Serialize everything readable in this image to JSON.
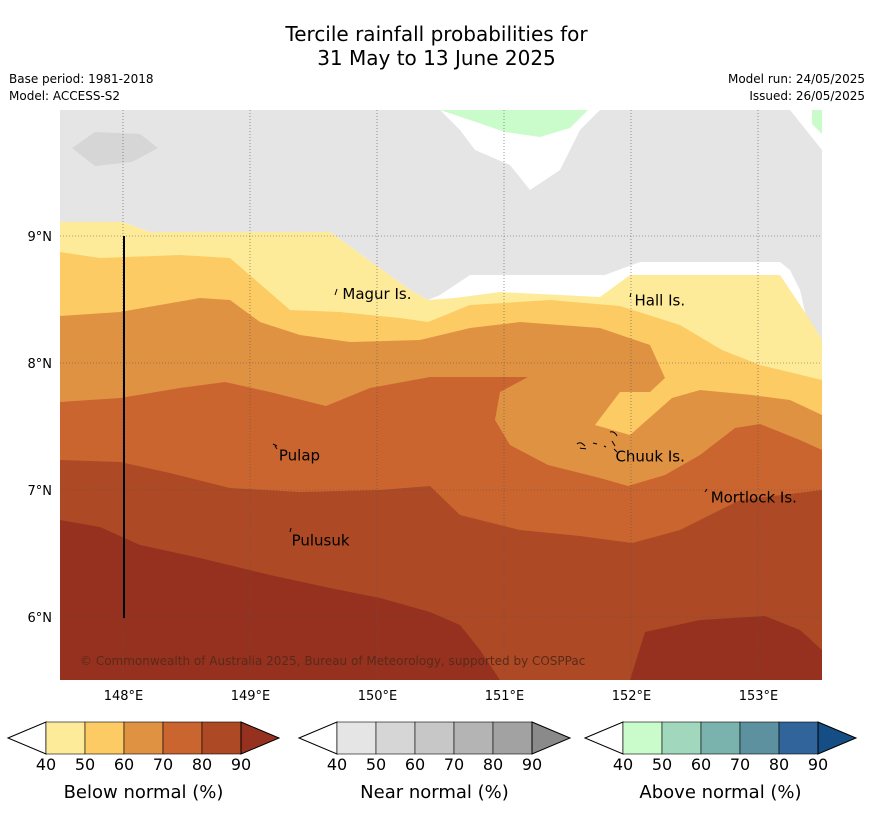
{
  "title_line1": "Tercile rainfall probabilities for",
  "title_line2": "31 May to 13 June 2025",
  "base_period": "Base period: 1981-2018",
  "model": "Model: ACCESS-S2",
  "model_run": "Model run: 24/05/2025",
  "issued": "Issued: 26/05/2025",
  "copyright": "© Commonwealth of Australia 2025, Bureau of Meteorology, supported by COSPPac",
  "lat_labels": [
    "9°N",
    "8°N",
    "7°N",
    "6°N"
  ],
  "lon_labels": [
    "148°E",
    "149°E",
    "150°E",
    "151°E",
    "152°E",
    "153°E"
  ],
  "places": [
    {
      "name": "Magur Is.",
      "lat": 8.55,
      "lon": 149.7
    },
    {
      "name": "Hall Is.",
      "lat": 8.5,
      "lon": 152.0
    },
    {
      "name": "Pulap",
      "lat": 7.28,
      "lon": 149.2
    },
    {
      "name": "Chuuk Is.",
      "lat": 7.27,
      "lon": 151.85
    },
    {
      "name": "Mortlock Is.",
      "lat": 6.95,
      "lon": 152.6
    },
    {
      "name": "Pulusuk",
      "lat": 6.61,
      "lon": 149.3
    }
  ],
  "colorbars": [
    {
      "label": "Below normal (%)",
      "ticks": [
        "40",
        "50",
        "60",
        "70",
        "80",
        "90"
      ],
      "colors": [
        "#ffffff",
        "#feeb9a",
        "#fdcb63",
        "#e09243",
        "#cb6530",
        "#ad4a25",
        "#963120"
      ]
    },
    {
      "label": "Near normal (%)",
      "ticks": [
        "40",
        "50",
        "60",
        "70",
        "80",
        "90"
      ],
      "colors": [
        "#ffffff",
        "#e5e5e5",
        "#d6d6d6",
        "#c7c7c7",
        "#b4b4b4",
        "#a2a2a2",
        "#8a8a8a"
      ]
    },
    {
      "label": "Above normal (%)",
      "ticks": [
        "40",
        "50",
        "60",
        "70",
        "80",
        "90"
      ],
      "colors": [
        "#ffffff",
        "#c9fcca",
        "#a1d8bd",
        "#7ab2ae",
        "#5d919f",
        "#31649a",
        "#144e85"
      ]
    }
  ]
}
